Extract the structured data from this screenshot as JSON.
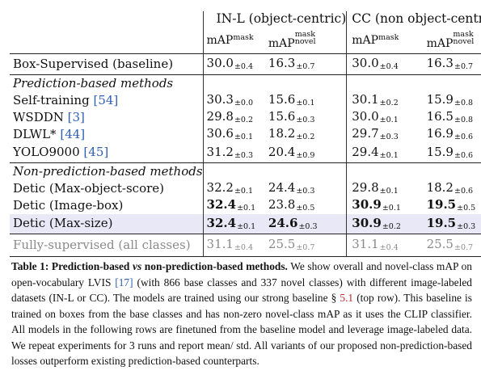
{
  "header": {
    "group1": "IN-L (object-centric)",
    "group2": "CC (non object-centric)",
    "col_map": "mAP",
    "col_map_sup": "mask",
    "col_novel": "mAP",
    "col_novel_sup": "mask",
    "col_novel_sub": "novel"
  },
  "rows": {
    "baseline": {
      "name": "Box-Supervised (baseline)",
      "v1": "30.0",
      "s1": "±0.4",
      "v2": "16.3",
      "s2": "±0.7",
      "v3": "30.0",
      "s3": "±0.4",
      "v4": "16.3",
      "s4": "±0.7"
    },
    "pred_title": "Prediction-based methods",
    "selftrain": {
      "name": "Self-training",
      "ref": "[54]",
      "v1": "30.3",
      "s1": "±0.0",
      "v2": "15.6",
      "s2": "±0.1",
      "v3": "30.1",
      "s3": "±0.2",
      "v4": "15.9",
      "s4": "±0.8"
    },
    "wsddn": {
      "name": "WSDDN",
      "ref": "[3]",
      "v1": "29.8",
      "s1": "±0.2",
      "v2": "15.6",
      "s2": "±0.3",
      "v3": "30.0",
      "s3": "±0.1",
      "v4": "16.5",
      "s4": "±0.8"
    },
    "dlwl": {
      "name": "DLWL*",
      "ref": "[44]",
      "v1": "30.6",
      "s1": "±0.1",
      "v2": "18.2",
      "s2": "±0.2",
      "v3": "29.7",
      "s3": "±0.3",
      "v4": "16.9",
      "s4": "±0.6"
    },
    "yolo": {
      "name": "YOLO9000",
      "ref": "[45]",
      "v1": "31.2",
      "s1": "±0.3",
      "v2": "20.4",
      "s2": "±0.9",
      "v3": "29.4",
      "s3": "±0.1",
      "v4": "15.9",
      "s4": "±0.6"
    },
    "nonpred_title": "Non-prediction-based methods",
    "detic_obj": {
      "name": "Detic (Max-object-score)",
      "v1": "32.2",
      "s1": "±0.1",
      "v2": "24.4",
      "s2": "±0.3",
      "v3": "29.8",
      "s3": "±0.1",
      "v4": "18.2",
      "s4": "±0.6"
    },
    "detic_img": {
      "name": "Detic (Image-box)",
      "v1": "32.4",
      "s1": "±0.1",
      "v2": "23.8",
      "s2": "±0.5",
      "v3": "30.9",
      "s3": "±0.1",
      "v4": "19.5",
      "s4": "±0.5"
    },
    "detic_max": {
      "name": "Detic (Max-size)",
      "v1": "32.4",
      "s1": "±0.1",
      "v2": "24.6",
      "s2": "±0.3",
      "v3": "30.9",
      "s3": "±0.2",
      "v4": "19.5",
      "s4": "±0.3"
    },
    "fully": {
      "name": "Fully-supervised (all classes)",
      "v1": "31.1",
      "s1": "±0.4",
      "v2": "25.5",
      "s2": "±0.7",
      "v3": "31.1",
      "s3": "±0.4",
      "v4": "25.5",
      "s4": "±0.7"
    }
  },
  "caption": {
    "label": "Table 1:",
    "title_a": "Prediction-based",
    "title_vs": "vs",
    "title_b": "non-prediction-based methods.",
    "text1": "We show overall and novel-class mAP on open-vocabulary LVIS",
    "ref1": "[17]",
    "text2": "(with 866 base classes and 337 novel classes) with different image-labeled datasets (IN-L or CC). The models are trained using our strong baseline §",
    "ref2": "5.1",
    "text3": "(top row). This baseline is trained on boxes from the base classes and has non-zero novel-class mAP as it uses the CLIP classifier. All models in the following rows are finetuned from the baseline model and leverage image-labeled data. We repeat experiments for 3 runs and report mean/ std. All variants of our proposed non-prediction-based losses outperform existing prediction-based counterparts."
  }
}
